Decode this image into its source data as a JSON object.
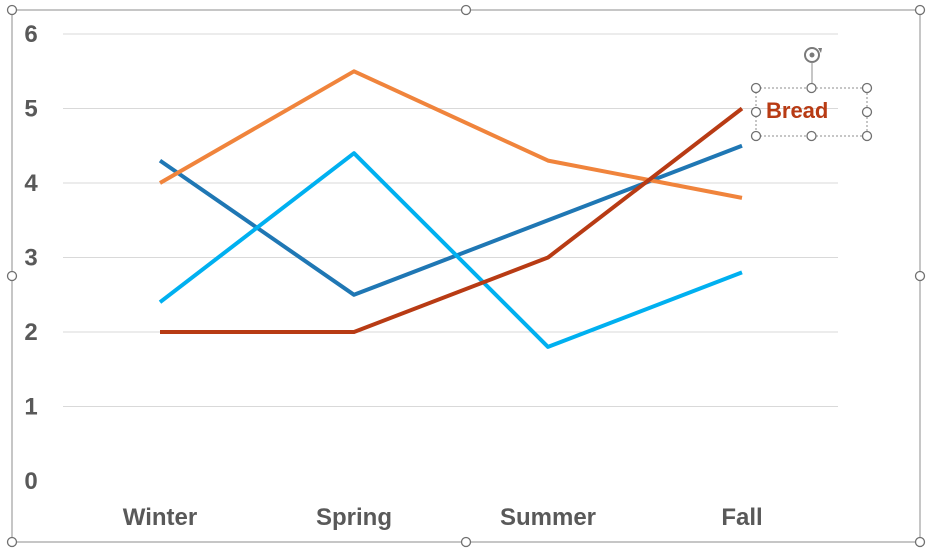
{
  "chart_data": {
    "type": "line",
    "categories": [
      "Winter",
      "Spring",
      "Summer",
      "Fall"
    ],
    "ylim": [
      0,
      6
    ],
    "yticks": [
      "0",
      "1",
      "2",
      "3",
      "4",
      "5",
      "6"
    ],
    "grid": true,
    "series": [
      {
        "color": "#1f77b4",
        "values": [
          4.3,
          2.5,
          3.5,
          4.5
        ]
      },
      {
        "color": "#f0843c",
        "values": [
          4.0,
          5.5,
          4.3,
          3.8
        ]
      },
      {
        "color": "#00b0f0",
        "values": [
          2.4,
          4.4,
          1.8,
          2.8
        ]
      },
      {
        "name": "Bread",
        "color": "#b83b14",
        "values": [
          2.0,
          2.0,
          3.0,
          5.0
        ]
      }
    ],
    "annotation": {
      "text": "Bread",
      "color": "#b83b14",
      "series_index": 3,
      "selected": true
    }
  },
  "colors": {
    "axis_text": "#595959",
    "grid": "#d9d9d9"
  },
  "icons": {
    "rotate_handle": "rotate-icon"
  }
}
